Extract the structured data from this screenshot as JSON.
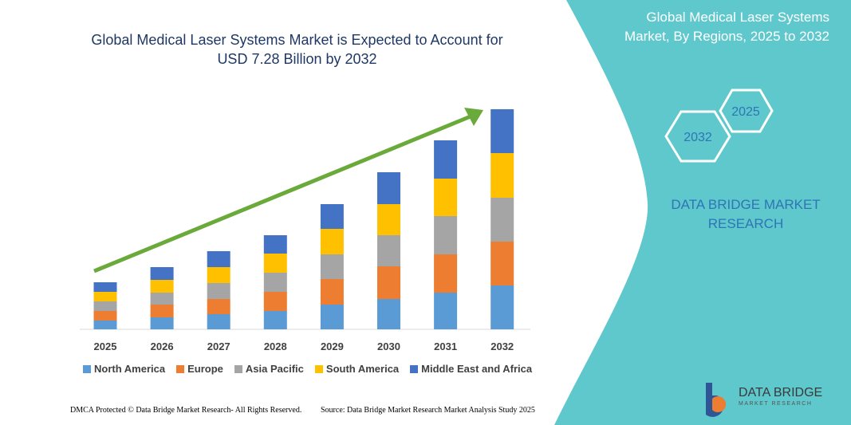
{
  "chart_data": {
    "type": "stacked-bar",
    "title": "Global Medical Laser Systems Market is Expected to Account for USD 7.28 Billion by 2032",
    "categories": [
      "2025",
      "2026",
      "2027",
      "2028",
      "2029",
      "2030",
      "2031",
      "2032"
    ],
    "series": [
      {
        "name": "North America",
        "color": "#5b9bd5",
        "values": [
          11,
          15,
          19,
          23,
          31,
          38,
          46,
          55
        ]
      },
      {
        "name": "Europe",
        "color": "#ed7d31",
        "values": [
          12,
          16,
          19,
          24,
          32,
          41,
          48,
          55
        ]
      },
      {
        "name": "Asia Pacific",
        "color": "#a5a5a5",
        "values": [
          12,
          15,
          20,
          24,
          31,
          39,
          48,
          55
        ]
      },
      {
        "name": "South America",
        "color": "#ffc000",
        "values": [
          12,
          16,
          20,
          24,
          32,
          39,
          47,
          56
        ]
      },
      {
        "name": "Middle East and Africa",
        "color": "#4472c4",
        "values": [
          12,
          16,
          20,
          23,
          31,
          40,
          48,
          55
        ]
      }
    ],
    "panel_title": "Global Medical Laser Systems Market, By Regions, 2025 to 2032",
    "badges": [
      "2025",
      "2032"
    ],
    "brand": "DATA BRIDGE MARKET RESEARCH",
    "logo": [
      "DATA BRIDGE",
      "MARKET RESEARCH"
    ],
    "footer_left": "DMCA Protected © Data Bridge Market Research- All Rights Reserved.",
    "footer_right": "Source: Data Bridge Market Research Market Analysis Study 2025"
  }
}
